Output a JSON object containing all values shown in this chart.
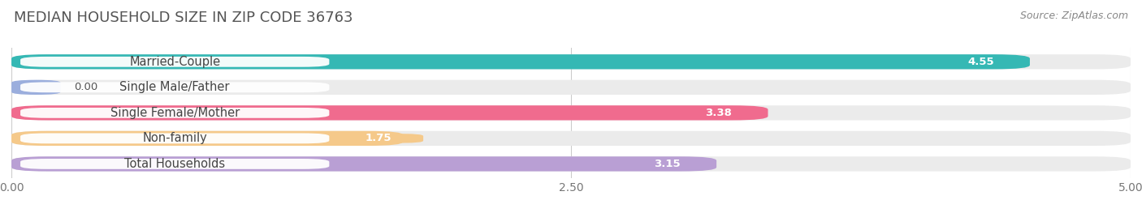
{
  "title": "MEDIAN HOUSEHOLD SIZE IN ZIP CODE 36763",
  "source": "Source: ZipAtlas.com",
  "categories": [
    "Married-Couple",
    "Single Male/Father",
    "Single Female/Mother",
    "Non-family",
    "Total Households"
  ],
  "values": [
    4.55,
    0.0,
    3.38,
    1.75,
    3.15
  ],
  "bar_colors": [
    "#35b8b4",
    "#9baedd",
    "#f06b8e",
    "#f5c98a",
    "#b99fd4"
  ],
  "xlim": [
    0,
    5.0
  ],
  "xticks": [
    0.0,
    2.5,
    5.0
  ],
  "xticklabels": [
    "0.00",
    "2.50",
    "5.00"
  ],
  "background_color": "#ffffff",
  "bar_height": 0.58,
  "bar_gap": 0.18,
  "title_fontsize": 13,
  "source_fontsize": 9,
  "label_fontsize": 10.5,
  "value_fontsize": 9.5
}
